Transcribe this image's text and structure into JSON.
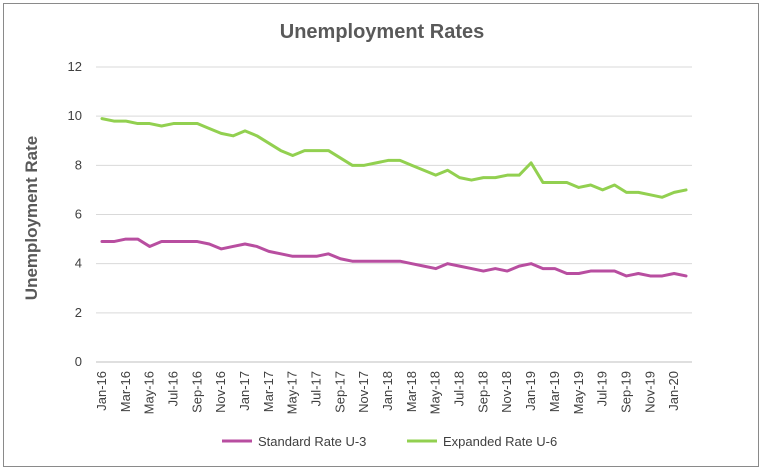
{
  "chart_data": {
    "type": "line",
    "title": "Unemployment Rates",
    "ylabel": "Unemployment Rate",
    "xlabel": "",
    "ylim": [
      0,
      12
    ],
    "yticks": [
      0,
      2,
      4,
      6,
      8,
      10,
      12
    ],
    "grid": "horizontal",
    "legend_position": "bottom",
    "x": [
      "Jan-16",
      "Feb-16",
      "Mar-16",
      "Apr-16",
      "May-16",
      "Jun-16",
      "Jul-16",
      "Aug-16",
      "Sep-16",
      "Oct-16",
      "Nov-16",
      "Dec-16",
      "Jan-17",
      "Feb-17",
      "Mar-17",
      "Apr-17",
      "May-17",
      "Jun-17",
      "Jul-17",
      "Aug-17",
      "Sep-17",
      "Oct-17",
      "Nov-17",
      "Dec-17",
      "Jan-18",
      "Feb-18",
      "Mar-18",
      "Apr-18",
      "May-18",
      "Jun-18",
      "Jul-18",
      "Aug-18",
      "Sep-18",
      "Oct-18",
      "Nov-18",
      "Dec-18",
      "Jan-19",
      "Feb-19",
      "Mar-19",
      "Apr-19",
      "May-19",
      "Jun-19",
      "Jul-19",
      "Aug-19",
      "Sep-19",
      "Oct-19",
      "Nov-19",
      "Dec-19",
      "Jan-20",
      "Feb-20"
    ],
    "x_tick_labels": [
      "Jan-16",
      "Mar-16",
      "May-16",
      "Jul-16",
      "Sep-16",
      "Nov-16",
      "Jan-17",
      "Mar-17",
      "May-17",
      "Jul-17",
      "Sep-17",
      "Nov-17",
      "Jan-18",
      "Mar-18",
      "May-18",
      "Jul-18",
      "Sep-18",
      "Nov-18",
      "Jan-19",
      "Mar-19",
      "May-19",
      "Jul-19",
      "Sep-19",
      "Nov-19",
      "Jan-20"
    ],
    "series": [
      {
        "name": "Standard Rate U-3",
        "color": "#b84ea0",
        "values": [
          4.9,
          4.9,
          5.0,
          5.0,
          4.7,
          4.9,
          4.9,
          4.9,
          4.9,
          4.8,
          4.6,
          4.7,
          4.8,
          4.7,
          4.5,
          4.4,
          4.3,
          4.3,
          4.3,
          4.4,
          4.2,
          4.1,
          4.1,
          4.1,
          4.1,
          4.1,
          4.0,
          3.9,
          3.8,
          4.0,
          3.9,
          3.8,
          3.7,
          3.8,
          3.7,
          3.9,
          4.0,
          3.8,
          3.8,
          3.6,
          3.6,
          3.7,
          3.7,
          3.7,
          3.5,
          3.6,
          3.5,
          3.5,
          3.6,
          3.5
        ]
      },
      {
        "name": "Expanded Rate U-6",
        "color": "#92d050",
        "values": [
          9.9,
          9.8,
          9.8,
          9.7,
          9.7,
          9.6,
          9.7,
          9.7,
          9.7,
          9.5,
          9.3,
          9.2,
          9.4,
          9.2,
          8.9,
          8.6,
          8.4,
          8.6,
          8.6,
          8.6,
          8.3,
          8.0,
          8.0,
          8.1,
          8.2,
          8.2,
          8.0,
          7.8,
          7.6,
          7.8,
          7.5,
          7.4,
          7.5,
          7.5,
          7.6,
          7.6,
          8.1,
          7.3,
          7.3,
          7.3,
          7.1,
          7.2,
          7.0,
          7.2,
          6.9,
          6.9,
          6.8,
          6.7,
          6.9,
          7.0
        ]
      }
    ]
  }
}
